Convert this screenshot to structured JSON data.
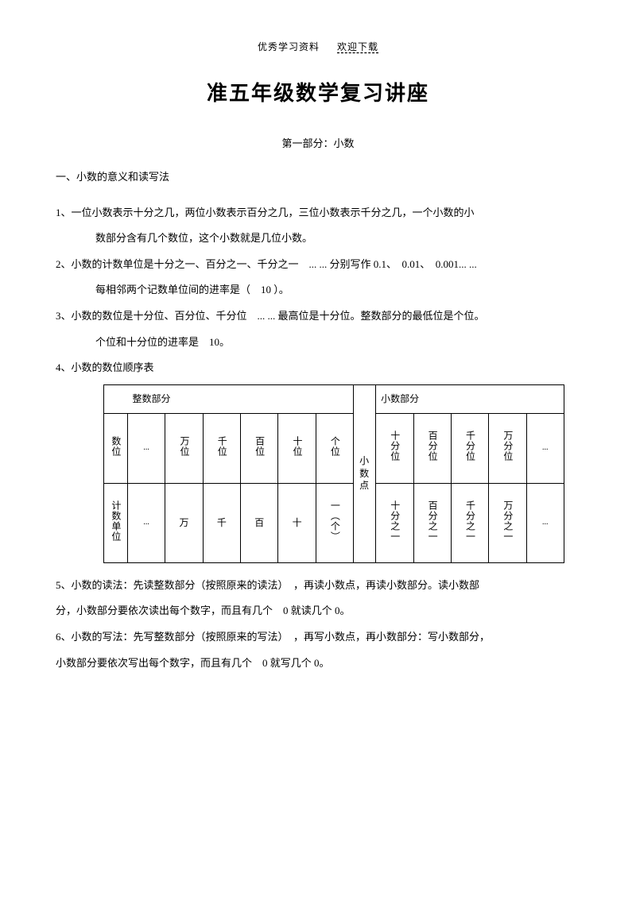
{
  "header": {
    "left": "优秀学习资料",
    "right": "欢迎下载"
  },
  "title": "准五年级数学复习讲座",
  "subtitle": "第一部分：小数",
  "section1": "一、小数的意义和读写法",
  "p1a": "1、一位小数表示十分之几，两位小数表示百分之几，三位小数表示千分之几，一个小数的小",
  "p1b": "数部分含有几个数位，这个小数就是几位小数。",
  "p2a": "2、小数的计数单位是十分之一、百分之一、千分之一　... ... 分别写作 0.1、　0.01、　0.001... ...",
  "p2b": "每相邻两个记数单位间的进率是（　10 ）。",
  "p3a": "3、小数的数位是十分位、百分位、千分位　... ... 最高位是十分位。整数部分的最低位是个位。",
  "p3b": "个位和十分位的进率是　10。",
  "p4": "4、小数的数位顺序表",
  "table": {
    "int_header": "整数部分",
    "dot_header": "小 数点",
    "dec_header": "小数部分",
    "row1_label": "数位",
    "row2_label": "计数单位",
    "ellipsis": "...",
    "int_positions": [
      "万位",
      "千位",
      "百位",
      "十位",
      "个位"
    ],
    "int_units": [
      "万",
      "千",
      "百",
      "十",
      "一（个）"
    ],
    "dec_positions": [
      "十分位",
      "百分位",
      "千分位",
      "万分位"
    ],
    "dec_units": [
      "十分之一",
      "百分之一",
      "千分之一",
      "万分之一"
    ]
  },
  "p5a": "5、小数的读法：先读整数部分（按照原来的读法）　，再读小数点，再读小数部分。读小数部",
  "p5b": "分，小数部分要依次读出每个数字，而且有几个　0 就读几个 0。",
  "p6a": "6、小数的写法：先写整数部分（按照原来的写法）　，再写小数点，再小数部分：写小数部分，",
  "p6b": "小数部分要依次写出每个数字，而且有几个　0 就写几个 0。"
}
